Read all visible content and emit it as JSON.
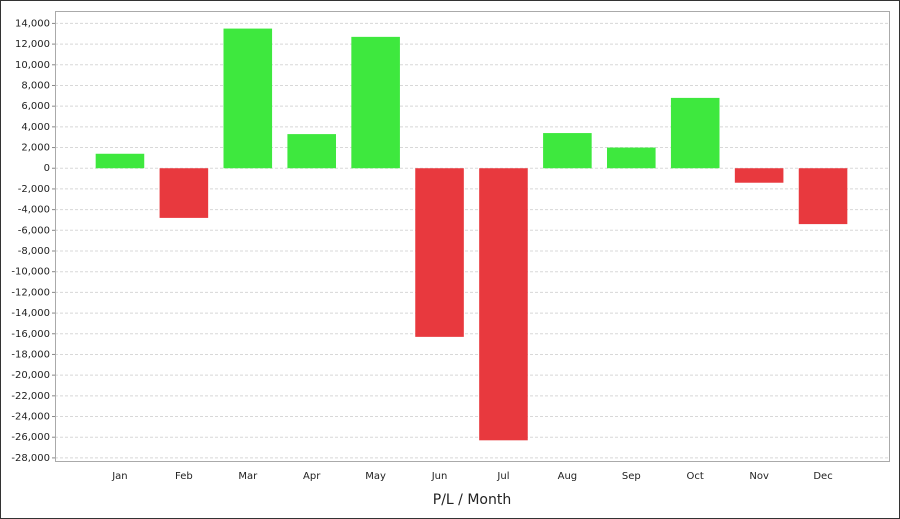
{
  "chart_data": {
    "type": "bar",
    "x_label": "P/L / Month",
    "categories": [
      "Jan",
      "Feb",
      "Mar",
      "Apr",
      "May",
      "Jun",
      "Jul",
      "Aug",
      "Sep",
      "Oct",
      "Nov",
      "Dec"
    ],
    "values": [
      1400,
      -4800,
      13500,
      3300,
      12700,
      -16300,
      -26300,
      3400,
      2000,
      6800,
      -1400,
      -5400
    ],
    "positive_color": "#3ee83e",
    "negative_color": "#e8393e",
    "ylim": [
      -28300,
      15200
    ],
    "yticks": [
      {
        "value": 14000,
        "label": "14,000"
      },
      {
        "value": 12000,
        "label": "12,000"
      },
      {
        "value": 10000,
        "label": "10,000"
      },
      {
        "value": 8000,
        "label": "8,000"
      },
      {
        "value": 6000,
        "label": "6,000"
      },
      {
        "value": 4000,
        "label": "4,000"
      },
      {
        "value": 2000,
        "label": "2,000"
      },
      0,
      {
        "value": -2000,
        "label": "-2,000"
      },
      {
        "value": -4000,
        "label": "-4,000"
      },
      {
        "value": -6000,
        "label": "-6,000"
      },
      {
        "value": -8000,
        "label": "-8,000"
      },
      {
        "value": -10000,
        "label": "-10,000"
      },
      {
        "value": -12000,
        "label": "-12,000"
      },
      {
        "value": -14000,
        "label": "-14,000"
      },
      {
        "value": -16000,
        "label": "-16,000"
      },
      {
        "value": -18000,
        "label": "-18,000"
      },
      {
        "value": -20000,
        "label": "-20,000"
      },
      {
        "value": -22000,
        "label": "-22,000"
      },
      {
        "value": -24000,
        "label": "-24,000"
      },
      {
        "value": -26000,
        "label": "-26,000"
      },
      {
        "value": -28000,
        "label": "-28,000"
      }
    ],
    "grid": true
  }
}
